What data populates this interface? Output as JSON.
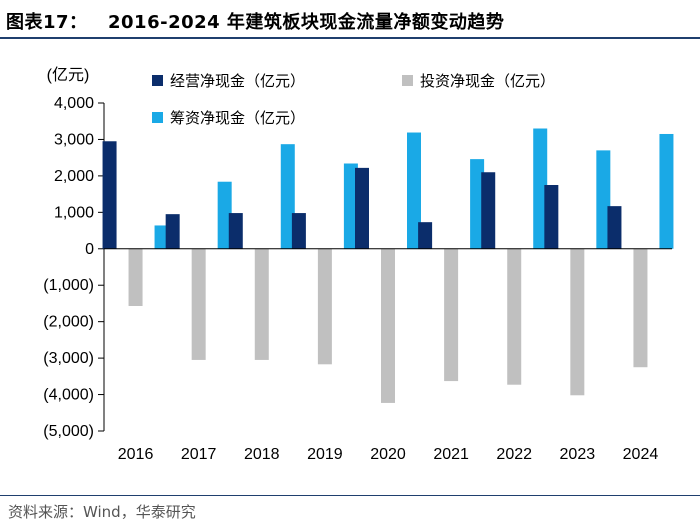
{
  "header": {
    "figure_label": "图表17：",
    "title": "2016-2024 年建筑板块现金流量净额变动趋势"
  },
  "footer": {
    "source": "资料来源：Wind，华泰研究"
  },
  "chart_data": {
    "type": "bar",
    "title": "2016-2024 年建筑板块现金流量净额变动趋势",
    "ylabel": "(亿元)",
    "xlabel": "",
    "ylim": [
      -5000,
      4000
    ],
    "yticks": [
      4000,
      3000,
      2000,
      1000,
      0,
      -1000,
      -2000,
      -3000,
      -4000,
      -5000
    ],
    "ytick_labels": [
      "4,000",
      "3,000",
      "2,000",
      "1,000",
      "0",
      "(1,000)",
      "(2,000)",
      "(3,000)",
      "(4,000)",
      "(5,000)"
    ],
    "categories": [
      "2016",
      "2017",
      "2018",
      "2019",
      "2020",
      "2021",
      "2022",
      "2023",
      "2024"
    ],
    "series": [
      {
        "name": "经营净现金（亿元）",
        "color": "#0b2d6b",
        "values": [
          2950,
          950,
          980,
          980,
          2220,
          730,
          2100,
          1750,
          1170
        ]
      },
      {
        "name": "投资净现金（亿元）",
        "color": "#c0c0c0",
        "values": [
          -1570,
          -3050,
          -3050,
          -3170,
          -4230,
          -3630,
          -3730,
          -4020,
          -3250
        ]
      },
      {
        "name": "筹资净现金（亿元）",
        "color": "#1aa9e6",
        "values": [
          640,
          1840,
          2870,
          2340,
          3190,
          2460,
          3300,
          2700,
          3150
        ]
      }
    ],
    "legend_position": "top"
  }
}
